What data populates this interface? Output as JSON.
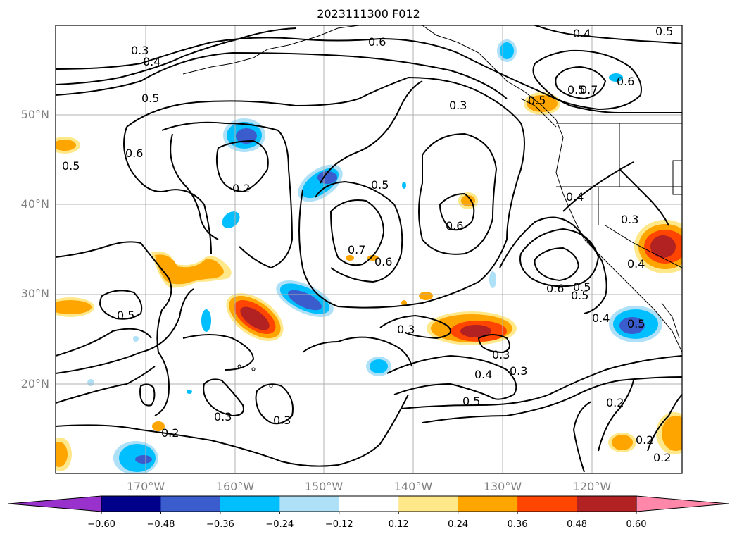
{
  "title": "2023111300 F012",
  "map": {
    "lat_labels": [
      "50°N",
      "40°N",
      "30°N",
      "20°N"
    ],
    "lon_labels": [
      "170°W",
      "160°W",
      "150°W",
      "140°W",
      "130°W",
      "120°W"
    ],
    "contour_labels": [
      {
        "text": "0.3"
      },
      {
        "text": "0.4"
      },
      {
        "text": "0.5"
      },
      {
        "text": "0.6"
      },
      {
        "text": "0.4"
      },
      {
        "text": "0.5"
      },
      {
        "text": "0.6"
      },
      {
        "text": "0.5"
      },
      {
        "text": "0.6"
      },
      {
        "text": "0.2"
      },
      {
        "text": "0.5"
      },
      {
        "text": "0.7"
      },
      {
        "text": "0.6"
      },
      {
        "text": "0.5"
      },
      {
        "text": "0.3"
      },
      {
        "text": "0.4"
      },
      {
        "text": "0.7"
      },
      {
        "text": "0.6"
      },
      {
        "text": "0.6"
      },
      {
        "text": "0.5"
      },
      {
        "text": "0.4"
      },
      {
        "text": "0.3"
      },
      {
        "text": "0.5"
      },
      {
        "text": "0.3"
      },
      {
        "text": "0.3"
      },
      {
        "text": "0.4"
      },
      {
        "text": "0.5"
      },
      {
        "text": "0.3"
      },
      {
        "text": "0.3"
      },
      {
        "text": "0.2"
      },
      {
        "text": "0.2"
      },
      {
        "text": "0.2"
      },
      {
        "text": "0.2"
      },
      {
        "text": "0.3"
      },
      {
        "text": "0.4"
      },
      {
        "text": "0.5"
      },
      {
        "text": "0.5"
      },
      {
        "text": "0.5"
      }
    ]
  },
  "colorbar": {
    "tick_labels": [
      "−0.60",
      "−0.48",
      "−0.36",
      "−0.24",
      "−0.12",
      "0.12",
      "0.24",
      "0.36",
      "0.48",
      "0.60"
    ],
    "colors": [
      "#9932cc",
      "#00008b",
      "#3a5ccc",
      "#00bfff",
      "#aee0f8",
      "#ffffff",
      "#ffe88a",
      "#ffa500",
      "#ff4500",
      "#b22222",
      "#ff88aa"
    ]
  }
}
